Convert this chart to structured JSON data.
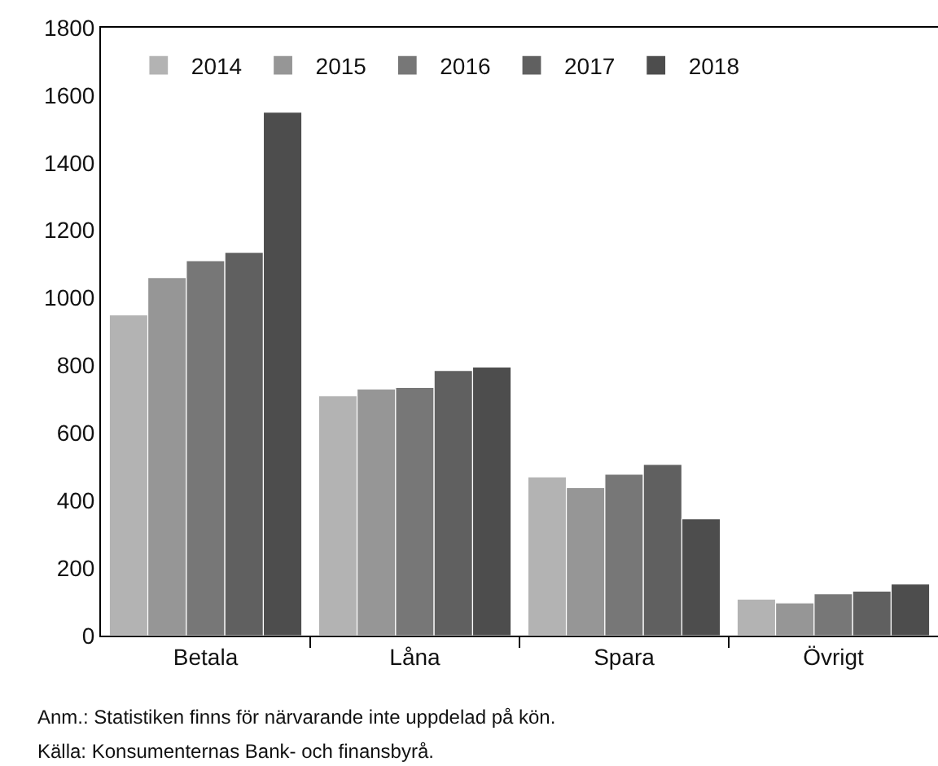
{
  "chart_data": {
    "type": "bar",
    "categories": [
      "Betala",
      "Låna",
      "Spara",
      "Övrigt"
    ],
    "series": [
      {
        "name": "2014",
        "color": "#b3b3b3",
        "values": [
          950,
          710,
          470,
          108
        ]
      },
      {
        "name": "2015",
        "color": "#969696",
        "values": [
          1060,
          730,
          438,
          97
        ]
      },
      {
        "name": "2016",
        "color": "#777777",
        "values": [
          1110,
          735,
          478,
          124
        ]
      },
      {
        "name": "2017",
        "color": "#606060",
        "values": [
          1135,
          785,
          507,
          132
        ]
      },
      {
        "name": "2018",
        "color": "#4d4d4d",
        "values": [
          1550,
          795,
          346,
          153
        ]
      }
    ],
    "ylim": [
      0,
      1800
    ],
    "yticks": [
      0,
      200,
      400,
      600,
      800,
      1000,
      1200,
      1400,
      1600,
      1800
    ],
    "legend": "top left",
    "annotations": [
      "Anm.: Statistiken finns för närvarande inte uppdelad på kön.",
      "Källa: Konsumenternas Bank- och finansbyrå."
    ]
  }
}
